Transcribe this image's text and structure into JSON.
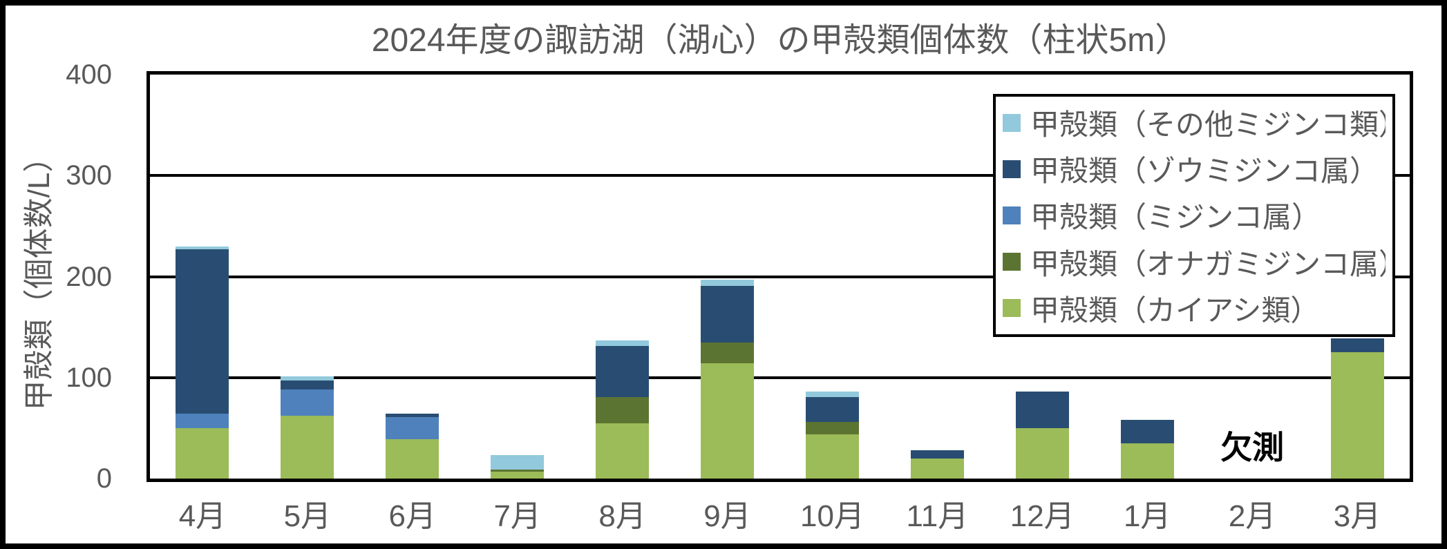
{
  "figure": {
    "title": "2024年度の諏訪湖（湖心）の甲殻類個体数（柱状5m）",
    "missing_data_label": "欠測"
  },
  "y_axis": {
    "title": "甲殻類（個体数/L）",
    "min": 0,
    "max": 400
  },
  "legend": {
    "items": [
      {
        "label": "甲殻類（その他ミジンコ類）",
        "color": "#92C9DC"
      },
      {
        "label": "甲殻類（ゾウミジンコ属）",
        "color": "#294D72"
      },
      {
        "label": "甲殻類（ミジンコ属）",
        "color": "#4F81BD"
      },
      {
        "label": "甲殻類（オナガミジンコ属）",
        "color": "#5C7431"
      },
      {
        "label": "甲殻類（カイアシ類）",
        "color": "#9CBB59"
      }
    ]
  },
  "colors": {
    "text_gray": "#595959",
    "grid_black": "#000000",
    "background": "#FFFFFF"
  },
  "chart_data": {
    "type": "bar",
    "stacked": true,
    "title": "2024年度の諏訪湖（湖心）の甲殻類個体数（柱状5m）",
    "xlabel": "",
    "ylabel": "甲殻類（個体数/L）",
    "ylim": [
      0,
      400
    ],
    "yticks": [
      0,
      100,
      200,
      300,
      400
    ],
    "grid": true,
    "legend_position": "top-right-inside",
    "categories": [
      "4月",
      "5月",
      "6月",
      "7月",
      "8月",
      "9月",
      "10月",
      "11月",
      "12月",
      "1月",
      "2月",
      "3月"
    ],
    "series": [
      {
        "name": "甲殻類（カイアシ類）",
        "color": "#9CBB59",
        "values": [
          50,
          62,
          39,
          7,
          55,
          114,
          44,
          20,
          50,
          35,
          0,
          125
        ]
      },
      {
        "name": "甲殻類（オナガミジンコ属）",
        "color": "#5C7431",
        "values": [
          0,
          0,
          0,
          2,
          26,
          21,
          12,
          0,
          0,
          0,
          0,
          0
        ]
      },
      {
        "name": "甲殻類（ミジンコ属）",
        "color": "#4F81BD",
        "values": [
          14,
          26,
          22,
          0,
          0,
          0,
          0,
          0,
          0,
          0,
          0,
          0
        ]
      },
      {
        "name": "甲殻類（ゾウミジンコ属）",
        "color": "#294D72",
        "values": [
          163,
          9,
          3,
          0,
          50,
          56,
          25,
          8,
          36,
          23,
          0,
          14
        ]
      },
      {
        "name": "甲殻類（その他ミジンコ類）",
        "color": "#92C9DC",
        "values": [
          3,
          4,
          0,
          14,
          6,
          6,
          5,
          0,
          0,
          0,
          0,
          0
        ]
      }
    ],
    "totals": [
      230,
      101,
      64,
      23,
      137,
      197,
      86,
      28,
      86,
      58,
      0,
      139
    ],
    "missing": {
      "category": "2月",
      "label": "欠測"
    }
  }
}
